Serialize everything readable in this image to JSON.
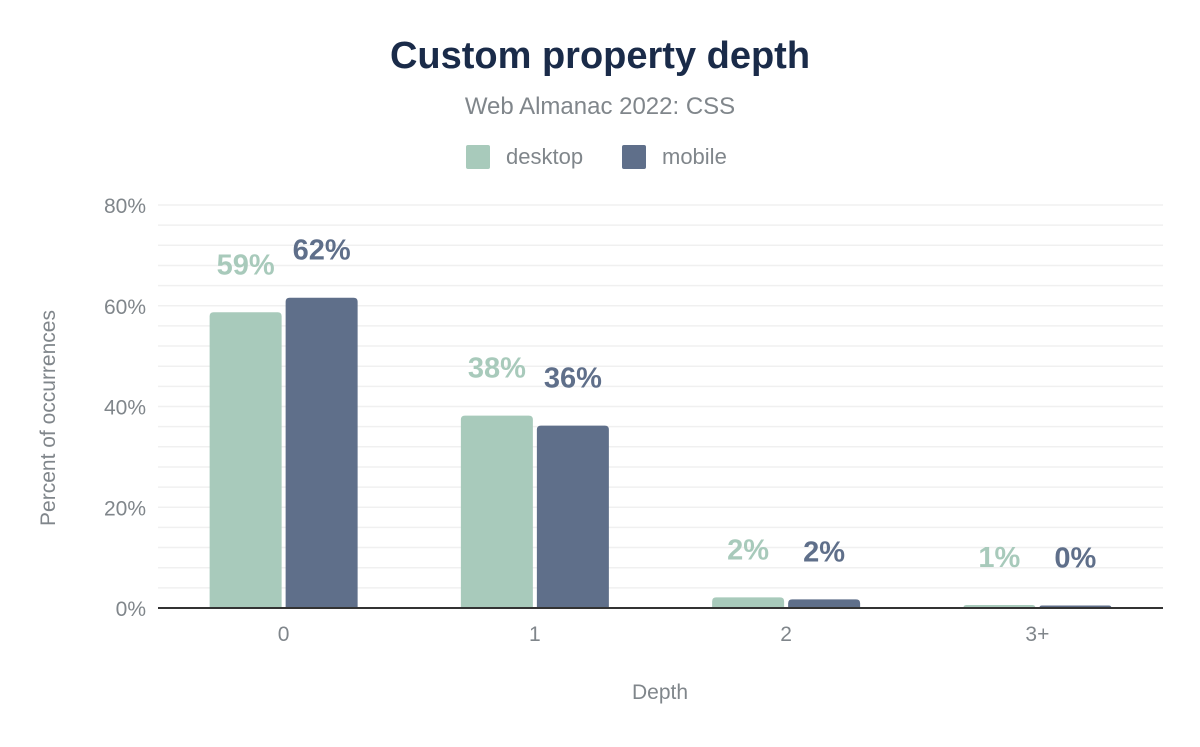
{
  "chart_data": {
    "type": "bar",
    "title": "Custom property depth",
    "subtitle": "Web Almanac 2022: CSS",
    "xlabel": "Depth",
    "ylabel": "Percent of occurrences",
    "categories": [
      "0",
      "1",
      "2",
      "3+"
    ],
    "ylim": [
      0,
      80
    ],
    "yticks": [
      0,
      20,
      40,
      60,
      80
    ],
    "ytick_labels": [
      "0%",
      "20%",
      "40%",
      "60%",
      "80%"
    ],
    "grid": true,
    "legend_position": "top-center",
    "series": [
      {
        "name": "desktop",
        "color": "#a8cabb",
        "values": [
          58.7,
          38.2,
          2.1,
          0.6
        ],
        "labels": [
          "59%",
          "38%",
          "2%",
          "1%"
        ]
      },
      {
        "name": "mobile",
        "color": "#5f6f8a",
        "values": [
          61.6,
          36.2,
          1.7,
          0.5
        ],
        "labels": [
          "62%",
          "36%",
          "2%",
          "0%"
        ]
      }
    ]
  },
  "colors": {
    "title": "#1a2b49",
    "text": "#80868b",
    "axis": "#333333",
    "grid": "#f0f0f0"
  }
}
